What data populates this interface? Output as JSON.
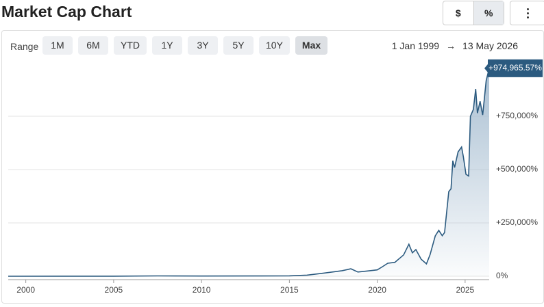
{
  "header": {
    "title": "Market Cap Chart",
    "buttons": [
      "$",
      "%"
    ]
  },
  "range": {
    "label": "Range",
    "options": [
      "1M",
      "6M",
      "YTD",
      "1Y",
      "3Y",
      "5Y",
      "10Y",
      "Max"
    ],
    "start": "1 Jan 1999",
    "arrow": "→",
    "end": "13 May 2026"
  },
  "chart_data": {
    "type": "area",
    "color": "#2b5a7f",
    "grid": true,
    "x": [
      1999.0,
      2002,
      2005,
      2007.5,
      2010,
      2013,
      2015,
      2016,
      2017,
      2018,
      2018.5,
      2018.9,
      2019.5,
      2020,
      2020.3,
      2020.6,
      2021,
      2021.5,
      2021.8,
      2022.0,
      2022.2,
      2022.5,
      2022.8,
      2023.0,
      2023.3,
      2023.5,
      2023.7,
      2023.83,
      2024.07,
      2024.2,
      2024.3,
      2024.4,
      2024.6,
      2024.8,
      2024.9,
      2025.05,
      2025.2,
      2025.3,
      2025.47,
      2025.6,
      2025.7,
      2025.85,
      2026.0,
      2026.2,
      2026.37
    ],
    "values": [
      0,
      300,
      500,
      1500,
      1000,
      1200,
      2000,
      5000,
      15000,
      26000,
      35000,
      20000,
      25000,
      30000,
      45000,
      61000,
      65000,
      100000,
      150000,
      110000,
      125000,
      80000,
      58000,
      100000,
      189000,
      215000,
      190000,
      205000,
      397000,
      410000,
      542000,
      510000,
      583000,
      606000,
      560000,
      478000,
      470000,
      750000,
      782000,
      878000,
      765000,
      820000,
      756000,
      917000,
      974965.57
    ],
    "value_labels": [
      null,
      null,
      null,
      null,
      null,
      null,
      null,
      null,
      null,
      null,
      null,
      null,
      null,
      null,
      null,
      null,
      null,
      null,
      null,
      null,
      null,
      null,
      null,
      null,
      null,
      null,
      null,
      null,
      null,
      null,
      null,
      null,
      null,
      null,
      null,
      null,
      null,
      null,
      null,
      null,
      null,
      null,
      null,
      null,
      "+974,965.57%"
    ],
    "xlim": [
      1999,
      2026.37
    ],
    "xticks": [
      2000,
      2005,
      2010,
      2015,
      2020,
      2025
    ],
    "ylim": [
      -16000,
      1013000
    ],
    "yticks": [
      {
        "value": 0,
        "label": "0%"
      },
      {
        "value": 250000,
        "label": "+250,000%"
      },
      {
        "value": 500000,
        "label": "+500,000%"
      },
      {
        "value": 750000,
        "label": "+750,000%"
      }
    ]
  }
}
